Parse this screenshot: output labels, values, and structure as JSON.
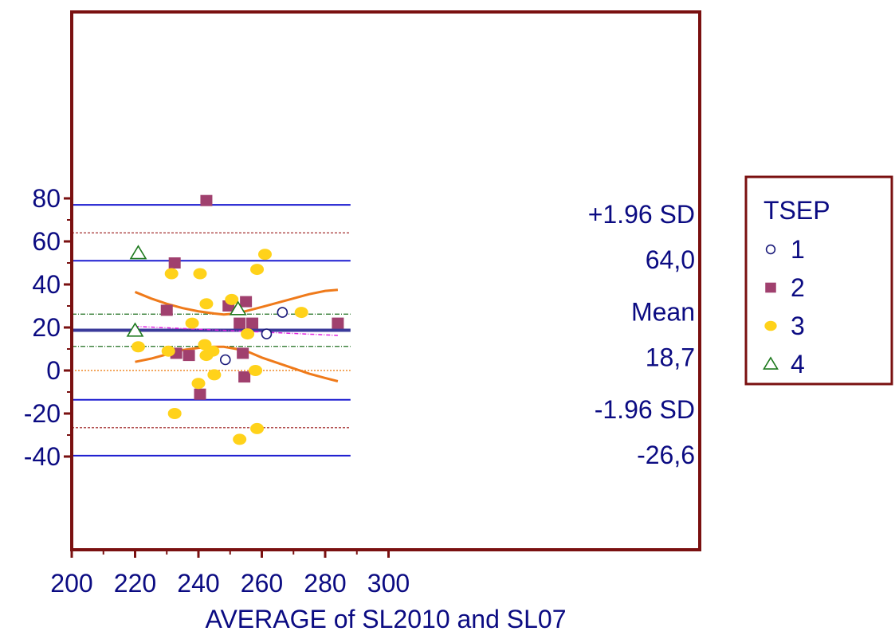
{
  "chart_data": {
    "type": "scatter",
    "title": "",
    "xlabel": "AVERAGE of SL2010 and SL07",
    "ylabel": "",
    "xlim": [
      200,
      300
    ],
    "ylim": [
      -40,
      80
    ],
    "x_ticks": [
      200,
      220,
      240,
      260,
      280,
      300
    ],
    "y_ticks": [
      -40,
      -20,
      0,
      20,
      40,
      60,
      80
    ],
    "x_tick_labels": [
      "200",
      "220",
      "240",
      "260",
      "280",
      "300"
    ],
    "y_tick_labels": [
      "-40",
      "-20",
      "0",
      "20",
      "40",
      "60",
      "80"
    ],
    "grid": false,
    "legend": {
      "title": "TSEP",
      "placement": "right",
      "entries": [
        {
          "label": "1",
          "marker": "open-circle",
          "color": "#1a1a7a"
        },
        {
          "label": "2",
          "marker": "filled-square",
          "color": "#a0406e"
        },
        {
          "label": "3",
          "marker": "filled-circle",
          "color": "#ffd21a"
        },
        {
          "label": "4",
          "marker": "open-triangle",
          "color": "#1f7a1f"
        }
      ]
    },
    "reference_lines": {
      "mean": 18.7,
      "mean_ci": [
        11.2,
        26.2
      ],
      "upper_loa": 64.0,
      "upper_loa_ci": [
        51.0,
        77.0
      ],
      "lower_loa": -26.6,
      "lower_loa_ci": [
        -39.6,
        -13.6
      ],
      "zero": 0,
      "x_range": [
        200,
        288
      ]
    },
    "annotations": {
      "upper_label": "+1.96 SD",
      "upper_value": "64,0",
      "mean_label": "Mean",
      "mean_value": "18,7",
      "lower_label": "-1.96 SD",
      "lower_value": "-26,6"
    },
    "regression_line": {
      "x": [
        220,
        284
      ],
      "y": [
        20.5,
        16.3
      ],
      "color": "#e020e0"
    },
    "ci_band": {
      "upper": {
        "x": [
          220,
          225,
          230,
          235,
          240,
          245,
          248,
          252,
          256,
          260,
          265,
          270,
          275,
          280,
          284
        ],
        "y": [
          36.5,
          33.5,
          31,
          29,
          27.5,
          26.5,
          26,
          26.5,
          28,
          29.5,
          31.5,
          33.5,
          35.5,
          37,
          37.5
        ]
      },
      "lower": {
        "x": [
          220,
          225,
          230,
          235,
          240,
          245,
          248,
          252,
          256,
          260,
          265,
          270,
          275,
          280,
          284
        ],
        "y": [
          4,
          5.5,
          7.5,
          9.5,
          10.5,
          11,
          11,
          10,
          8.5,
          6,
          3.5,
          1,
          -1.5,
          -3.5,
          -5
        ]
      },
      "color": "#ef7a1a"
    },
    "series": [
      {
        "name": "1",
        "marker": "open-circle",
        "color": "#1a1a7a",
        "points": [
          [
            266.5,
            27
          ],
          [
            261.5,
            17
          ],
          [
            248.5,
            5
          ]
        ]
      },
      {
        "name": "2",
        "marker": "filled-square",
        "color": "#a0406e",
        "points": [
          [
            242.5,
            79
          ],
          [
            232.5,
            50
          ],
          [
            230,
            28
          ],
          [
            249.5,
            30
          ],
          [
            255,
            32
          ],
          [
            253,
            22
          ],
          [
            257,
            22
          ],
          [
            284,
            22
          ],
          [
            233,
            8
          ],
          [
            237,
            7
          ],
          [
            254,
            8
          ],
          [
            254.5,
            -3
          ],
          [
            240.5,
            -11
          ]
        ]
      },
      {
        "name": "3",
        "marker": "filled-circle",
        "color": "#ffd21a",
        "points": [
          [
            261,
            54
          ],
          [
            231.5,
            45
          ],
          [
            240.5,
            45
          ],
          [
            258.5,
            47
          ],
          [
            242.5,
            31
          ],
          [
            250.5,
            33
          ],
          [
            238,
            22
          ],
          [
            272.5,
            27
          ],
          [
            255.5,
            17
          ],
          [
            221,
            11
          ],
          [
            230.5,
            9
          ],
          [
            242,
            12
          ],
          [
            242.5,
            7
          ],
          [
            244.5,
            9
          ],
          [
            245,
            -2
          ],
          [
            240,
            -6
          ],
          [
            258,
            0
          ],
          [
            232.5,
            -20
          ],
          [
            258.5,
            -27
          ],
          [
            253,
            -32
          ]
        ]
      },
      {
        "name": "4",
        "marker": "open-triangle",
        "color": "#1f7a1f",
        "points": [
          [
            221,
            54.5
          ],
          [
            252.5,
            28.5
          ],
          [
            220,
            18.5
          ]
        ]
      }
    ]
  }
}
